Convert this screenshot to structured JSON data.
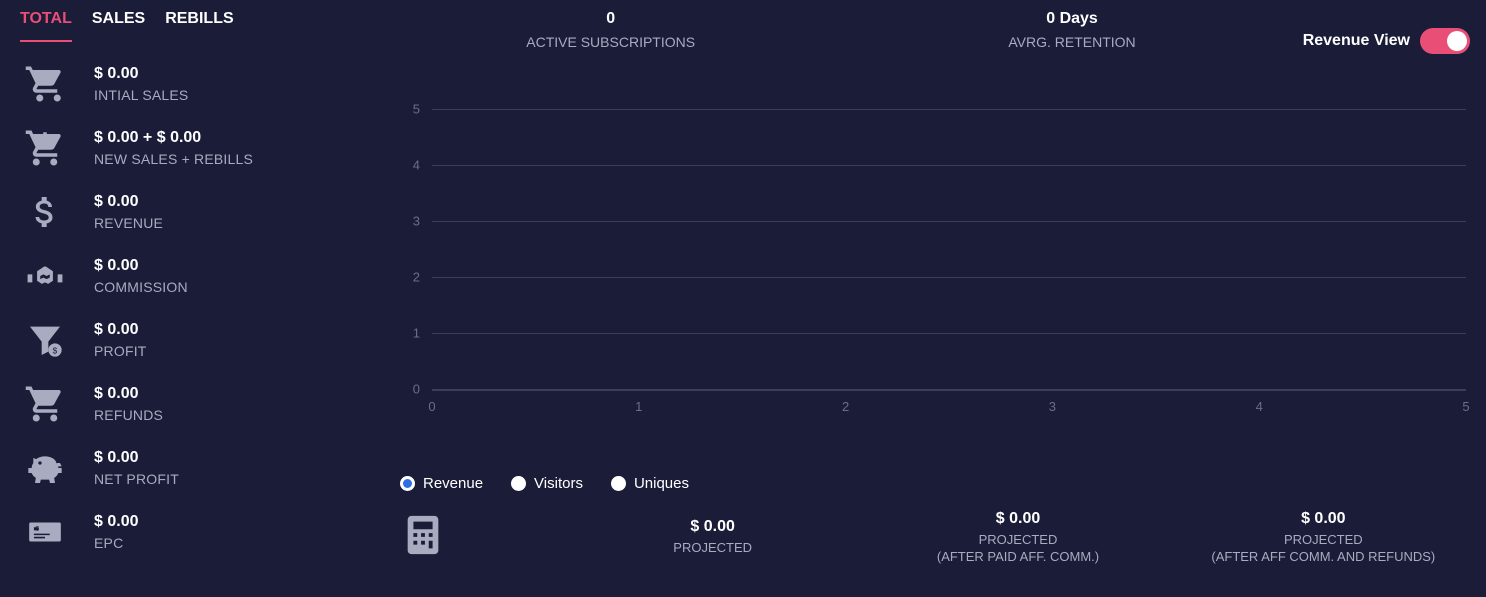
{
  "colors": {
    "background": "#1a1c38",
    "accent": "#e94e77",
    "text_muted": "#a9abc0",
    "grid": "#3c3e5a",
    "tick": "#6c6e88",
    "radio_selected": "#2f6fe4"
  },
  "tabs": {
    "items": [
      "TOTAL",
      "SALES",
      "REBILLS"
    ],
    "active_index": 0
  },
  "sidebar_metrics": [
    {
      "icon": "cart",
      "value": "$ 0.00",
      "label": "INTIAL SALES"
    },
    {
      "icon": "cart-plus",
      "value": "$ 0.00 + $ 0.00",
      "label": "NEW SALES + REBILLS"
    },
    {
      "icon": "dollar",
      "value": "$ 0.00",
      "label": "REVENUE"
    },
    {
      "icon": "handshake",
      "value": "$ 0.00",
      "label": "COMMISSION"
    },
    {
      "icon": "funnel",
      "value": "$ 0.00",
      "label": "PROFIT"
    },
    {
      "icon": "cart-down",
      "value": "$ 0.00",
      "label": "REFUNDS"
    },
    {
      "icon": "piggy",
      "value": "$ 0.00",
      "label": "NET PROFIT"
    },
    {
      "icon": "check",
      "value": "$ 0.00",
      "label": "EPC"
    }
  ],
  "top_stats": [
    {
      "value": "0",
      "label": "ACTIVE SUBSCRIPTIONS"
    },
    {
      "value": "0 Days",
      "label": "AVRG. RETENTION"
    }
  ],
  "toggle": {
    "label": "Revenue View",
    "on": true
  },
  "chart": {
    "type": "line",
    "ylim": [
      0,
      5
    ],
    "yticks": [
      0,
      1,
      2,
      3,
      4,
      5
    ],
    "xlim": [
      0,
      5
    ],
    "xticks": [
      0,
      1,
      2,
      3,
      4,
      5
    ],
    "series": [],
    "grid_color": "#3c3e5a",
    "background_color": "#1a1c38",
    "tick_fontsize": 13,
    "tick_color": "#6c6e88"
  },
  "legend": {
    "items": [
      "Revenue",
      "Visitors",
      "Uniques"
    ],
    "selected_index": 0
  },
  "footer": [
    {
      "value": "$ 0.00",
      "label": "PROJECTED"
    },
    {
      "value": "$ 0.00",
      "label": "PROJECTED\n(AFTER PAID AFF. COMM.)"
    },
    {
      "value": "$ 0.00",
      "label": "PROJECTED\n(AFTER AFF COMM. AND REFUNDS)"
    }
  ]
}
